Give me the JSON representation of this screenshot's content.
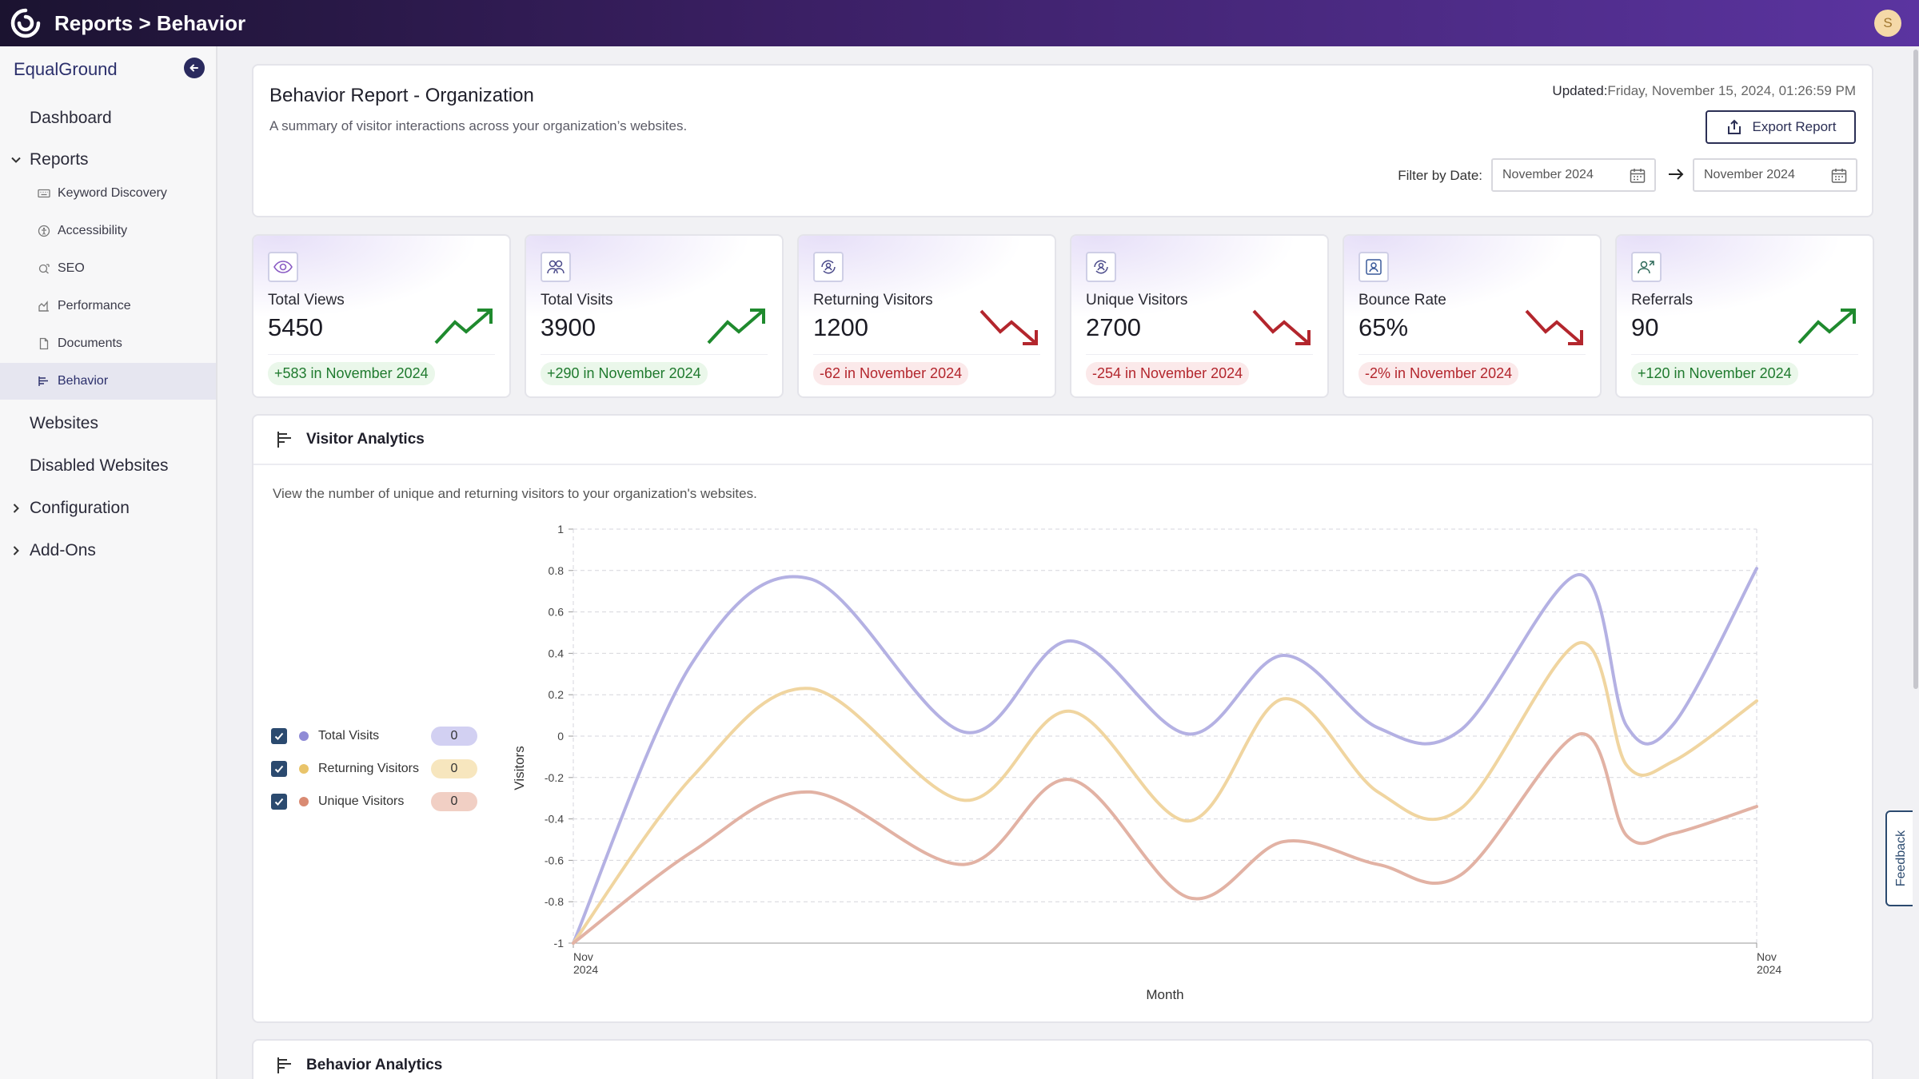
{
  "topbar": {
    "title": "Reports > Behavior",
    "avatar_initial": "S"
  },
  "sidebar": {
    "brand": "EqualGround",
    "items": {
      "dashboard": "Dashboard",
      "reports": "Reports",
      "websites": "Websites",
      "disabled_websites": "Disabled Websites",
      "configuration": "Configuration",
      "add_ons": "Add-Ons"
    },
    "report_items": [
      {
        "label": "Keyword Discovery",
        "icon": "keyboard-icon"
      },
      {
        "label": "Accessibility",
        "icon": "accessibility-icon"
      },
      {
        "label": "SEO",
        "icon": "seo-icon"
      },
      {
        "label": "Performance",
        "icon": "performance-icon"
      },
      {
        "label": "Documents",
        "icon": "document-icon"
      },
      {
        "label": "Behavior",
        "icon": "behavior-icon"
      }
    ],
    "active_item": "Behavior"
  },
  "header": {
    "title": "Behavior Report - Organization",
    "subtitle": "A summary of visitor interactions across your organization’s websites.",
    "updated_label": "Updated:",
    "updated_value": "Friday, November 15, 2024, 01:26:59 PM",
    "export_label": "Export Report",
    "filter_label": "Filter by Date:",
    "date_from": "November 2024",
    "date_to": "November 2024"
  },
  "stats": [
    {
      "label": "Total Views",
      "value": "5450",
      "change": "+583 in November 2024",
      "direction": "up",
      "icon": "eye-icon"
    },
    {
      "label": "Total Visits",
      "value": "3900",
      "change": "+290 in November 2024",
      "direction": "up",
      "icon": "users-icon"
    },
    {
      "label": "Returning Visitors",
      "value": "1200",
      "change": "-62 in November 2024",
      "direction": "down",
      "icon": "returning-user-icon"
    },
    {
      "label": "Unique Visitors",
      "value": "2700",
      "change": "-254 in November 2024",
      "direction": "down",
      "icon": "unique-user-icon"
    },
    {
      "label": "Bounce Rate",
      "value": "65%",
      "change": "-2% in November 2024",
      "direction": "down",
      "icon": "profile-icon"
    },
    {
      "label": "Referrals",
      "value": "90",
      "change": "+120 in November 2024",
      "direction": "up",
      "icon": "referral-icon"
    }
  ],
  "colors": {
    "up": "#1f8a2e",
    "down": "#b3262d",
    "total_visits": "#b4b1e3",
    "returning_visitors": "#f0d5a0",
    "unique_visitors": "#e2b2a4"
  },
  "analytics": {
    "title": "Visitor Analytics",
    "description": "View the number of unique and returning visitors to your organization's websites.",
    "legend": [
      {
        "name": "Total Visits",
        "count": "0",
        "color": "#8f8bd6",
        "badge": "#d2d0f2"
      },
      {
        "name": "Returning Visitors",
        "count": "0",
        "color": "#e9c46a",
        "badge": "#f7e6be"
      },
      {
        "name": "Unique Visitors",
        "count": "0",
        "color": "#d98a72",
        "badge": "#f1cfc4"
      }
    ]
  },
  "chart_data": {
    "type": "line",
    "xlabel": "Month",
    "ylabel": "Visitors",
    "ylim": [
      -1,
      1
    ],
    "yticks": [
      "1",
      "0.8",
      "0.6",
      "0.4",
      "0.2",
      "0",
      "-0.2",
      "-0.4",
      "-0.6",
      "-0.8",
      "-1"
    ],
    "xticks": [
      [
        "Nov",
        "2024"
      ],
      [
        "Nov",
        "2024"
      ]
    ],
    "grid": true,
    "x": [
      0,
      0.1,
      0.2,
      0.33,
      0.42,
      0.52,
      0.6,
      0.68,
      0.75,
      0.85,
      0.89,
      0.93,
      1.0
    ],
    "series": [
      {
        "name": "Total Visits",
        "values": [
          -1,
          0.35,
          0.76,
          0.02,
          0.46,
          0.01,
          0.39,
          0.04,
          0.03,
          0.78,
          0.05,
          0.06,
          0.81
        ]
      },
      {
        "name": "Returning Visitors",
        "values": [
          -1,
          -0.2,
          0.23,
          -0.31,
          0.12,
          -0.41,
          0.18,
          -0.27,
          -0.35,
          0.45,
          -0.14,
          -0.12,
          0.17
        ]
      },
      {
        "name": "Unique Visitors",
        "values": [
          -1,
          -0.56,
          -0.27,
          -0.62,
          -0.21,
          -0.78,
          -0.51,
          -0.62,
          -0.67,
          0.01,
          -0.48,
          -0.47,
          -0.34
        ]
      }
    ]
  },
  "behavior_section": {
    "title": "Behavior Analytics"
  },
  "feedback": {
    "label": "Feedback"
  }
}
